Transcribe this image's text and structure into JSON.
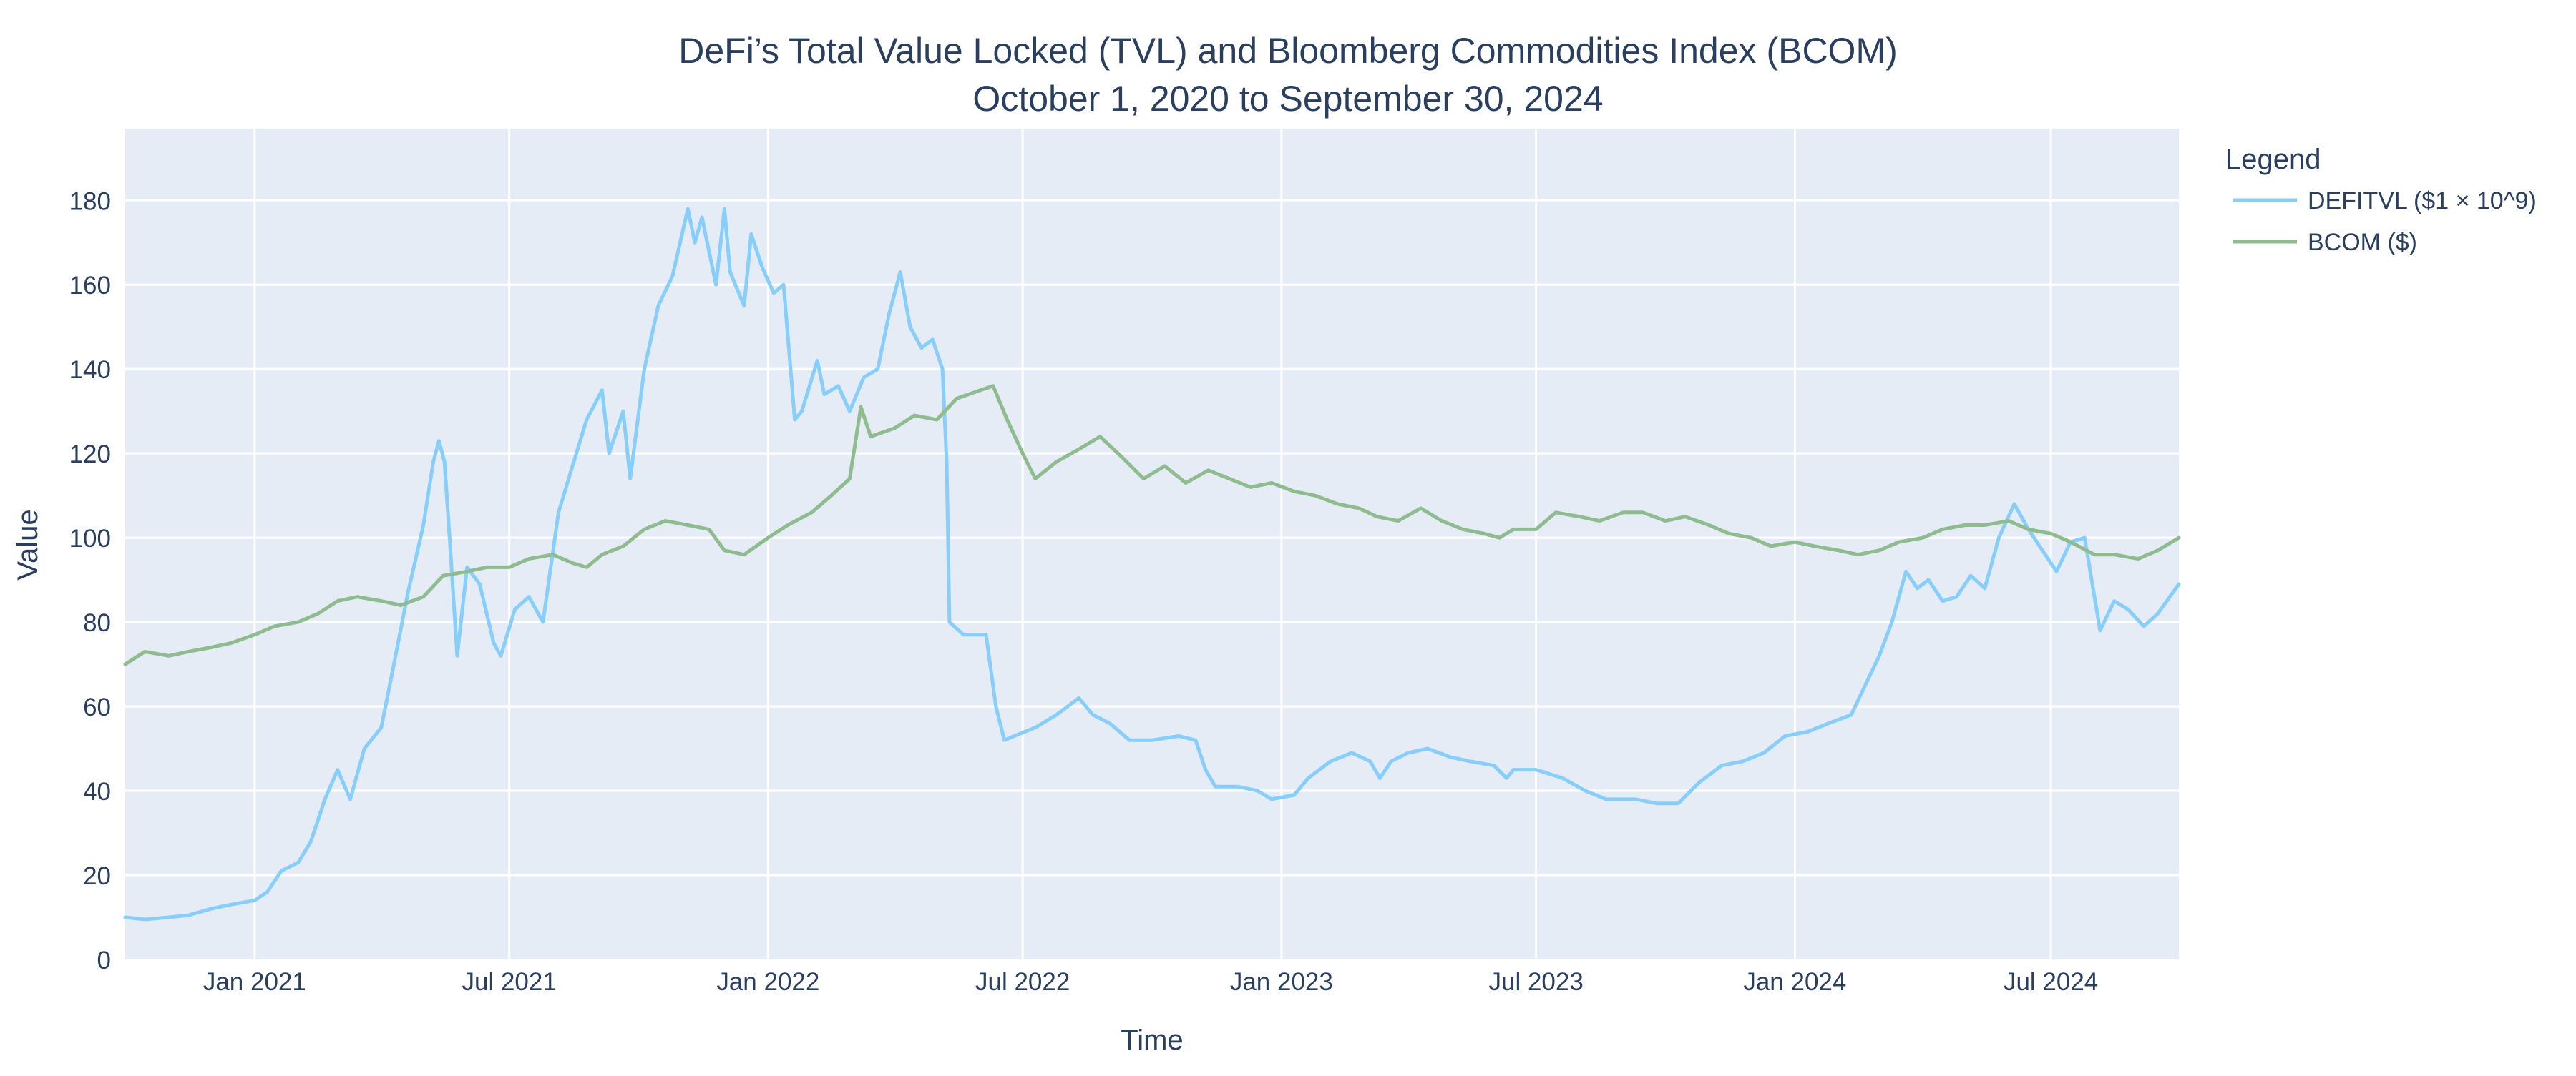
{
  "chart_data": {
    "type": "line",
    "title": "DeFi’s Total Value Locked (TVL) and Bloomberg Commodities Index (BCOM)",
    "subtitle": "October 1, 2020 to September 30, 2024",
    "xlabel": "Time",
    "ylabel": "Value",
    "xlim": [
      "2020-10-01",
      "2024-09-30"
    ],
    "ylim": [
      0,
      197
    ],
    "x_ticks": [
      {
        "date": "2021-01-01",
        "label": "Jan 2021"
      },
      {
        "date": "2021-07-01",
        "label": "Jul 2021"
      },
      {
        "date": "2022-01-01",
        "label": "Jan 2022"
      },
      {
        "date": "2022-07-01",
        "label": "Jul 2022"
      },
      {
        "date": "2023-01-01",
        "label": "Jan 2023"
      },
      {
        "date": "2023-07-01",
        "label": "Jul 2023"
      },
      {
        "date": "2024-01-01",
        "label": "Jan 2024"
      },
      {
        "date": "2024-07-01",
        "label": "Jul 2024"
      }
    ],
    "y_ticks": [
      0,
      20,
      40,
      60,
      80,
      100,
      120,
      140,
      160,
      180
    ],
    "grid": true,
    "plot_bgcolor": "#E5ECF6",
    "legend": {
      "title": "Legend",
      "position": "right"
    },
    "series": [
      {
        "name": "DEFITVL ($1 × 10^9)",
        "color": "#87CEFA",
        "points": [
          [
            "2020-10-01",
            10
          ],
          [
            "2020-10-15",
            9.5
          ],
          [
            "2020-11-01",
            10
          ],
          [
            "2020-11-15",
            10.5
          ],
          [
            "2020-12-01",
            12
          ],
          [
            "2020-12-15",
            13
          ],
          [
            "2021-01-01",
            14
          ],
          [
            "2021-01-10",
            16
          ],
          [
            "2021-01-20",
            21
          ],
          [
            "2021-02-01",
            23
          ],
          [
            "2021-02-10",
            28
          ],
          [
            "2021-02-20",
            38
          ],
          [
            "2021-03-01",
            45
          ],
          [
            "2021-03-10",
            38
          ],
          [
            "2021-03-20",
            50
          ],
          [
            "2021-04-01",
            55
          ],
          [
            "2021-04-10",
            70
          ],
          [
            "2021-04-20",
            87
          ],
          [
            "2021-05-01",
            103
          ],
          [
            "2021-05-08",
            118
          ],
          [
            "2021-05-12",
            123
          ],
          [
            "2021-05-16",
            118
          ],
          [
            "2021-05-20",
            98
          ],
          [
            "2021-05-25",
            72
          ],
          [
            "2021-06-01",
            93
          ],
          [
            "2021-06-10",
            89
          ],
          [
            "2021-06-20",
            75
          ],
          [
            "2021-06-25",
            72
          ],
          [
            "2021-07-05",
            83
          ],
          [
            "2021-07-15",
            86
          ],
          [
            "2021-07-25",
            80
          ],
          [
            "2021-08-05",
            106
          ],
          [
            "2021-08-15",
            117
          ],
          [
            "2021-08-25",
            128
          ],
          [
            "2021-09-05",
            135
          ],
          [
            "2021-09-10",
            120
          ],
          [
            "2021-09-20",
            130
          ],
          [
            "2021-09-25",
            114
          ],
          [
            "2021-10-05",
            140
          ],
          [
            "2021-10-15",
            155
          ],
          [
            "2021-10-25",
            162
          ],
          [
            "2021-11-05",
            178
          ],
          [
            "2021-11-10",
            170
          ],
          [
            "2021-11-15",
            176
          ],
          [
            "2021-11-25",
            160
          ],
          [
            "2021-12-01",
            178
          ],
          [
            "2021-12-05",
            163
          ],
          [
            "2021-12-15",
            155
          ],
          [
            "2021-12-20",
            172
          ],
          [
            "2021-12-28",
            164
          ],
          [
            "2022-01-05",
            158
          ],
          [
            "2022-01-12",
            160
          ],
          [
            "2022-01-20",
            128
          ],
          [
            "2022-01-25",
            130
          ],
          [
            "2022-02-05",
            142
          ],
          [
            "2022-02-10",
            134
          ],
          [
            "2022-02-20",
            136
          ],
          [
            "2022-02-28",
            130
          ],
          [
            "2022-03-10",
            138
          ],
          [
            "2022-03-20",
            140
          ],
          [
            "2022-03-28",
            153
          ],
          [
            "2022-04-05",
            163
          ],
          [
            "2022-04-12",
            150
          ],
          [
            "2022-04-20",
            145
          ],
          [
            "2022-04-28",
            147
          ],
          [
            "2022-05-05",
            140
          ],
          [
            "2022-05-08",
            118
          ],
          [
            "2022-05-10",
            80
          ],
          [
            "2022-05-20",
            77
          ],
          [
            "2022-06-05",
            77
          ],
          [
            "2022-06-12",
            60
          ],
          [
            "2022-06-18",
            52
          ],
          [
            "2022-06-25",
            53
          ],
          [
            "2022-07-10",
            55
          ],
          [
            "2022-07-25",
            58
          ],
          [
            "2022-08-10",
            62
          ],
          [
            "2022-08-20",
            58
          ],
          [
            "2022-09-01",
            56
          ],
          [
            "2022-09-15",
            52
          ],
          [
            "2022-10-01",
            52
          ],
          [
            "2022-10-20",
            53
          ],
          [
            "2022-11-01",
            52
          ],
          [
            "2022-11-08",
            45
          ],
          [
            "2022-11-15",
            41
          ],
          [
            "2022-12-01",
            41
          ],
          [
            "2022-12-15",
            40
          ],
          [
            "2022-12-25",
            38
          ],
          [
            "2023-01-10",
            39
          ],
          [
            "2023-01-20",
            43
          ],
          [
            "2023-02-05",
            47
          ],
          [
            "2023-02-20",
            49
          ],
          [
            "2023-03-05",
            47
          ],
          [
            "2023-03-12",
            43
          ],
          [
            "2023-03-20",
            47
          ],
          [
            "2023-04-01",
            49
          ],
          [
            "2023-04-15",
            50
          ],
          [
            "2023-05-01",
            48
          ],
          [
            "2023-05-15",
            47
          ],
          [
            "2023-06-01",
            46
          ],
          [
            "2023-06-10",
            43
          ],
          [
            "2023-06-15",
            45
          ],
          [
            "2023-07-01",
            45
          ],
          [
            "2023-07-20",
            43
          ],
          [
            "2023-08-05",
            40
          ],
          [
            "2023-08-20",
            38
          ],
          [
            "2023-09-10",
            38
          ],
          [
            "2023-09-25",
            37
          ],
          [
            "2023-10-10",
            37
          ],
          [
            "2023-10-25",
            42
          ],
          [
            "2023-11-10",
            46
          ],
          [
            "2023-11-25",
            47
          ],
          [
            "2023-12-10",
            49
          ],
          [
            "2023-12-25",
            53
          ],
          [
            "2024-01-10",
            54
          ],
          [
            "2024-01-25",
            56
          ],
          [
            "2024-02-10",
            58
          ],
          [
            "2024-02-20",
            65
          ],
          [
            "2024-03-01",
            72
          ],
          [
            "2024-03-10",
            80
          ],
          [
            "2024-03-20",
            92
          ],
          [
            "2024-03-28",
            88
          ],
          [
            "2024-04-05",
            90
          ],
          [
            "2024-04-15",
            85
          ],
          [
            "2024-04-25",
            86
          ],
          [
            "2024-05-05",
            91
          ],
          [
            "2024-05-15",
            88
          ],
          [
            "2024-05-25",
            100
          ],
          [
            "2024-06-05",
            108
          ],
          [
            "2024-06-15",
            102
          ],
          [
            "2024-06-25",
            97
          ],
          [
            "2024-07-05",
            92
          ],
          [
            "2024-07-15",
            99
          ],
          [
            "2024-07-25",
            100
          ],
          [
            "2024-08-05",
            78
          ],
          [
            "2024-08-15",
            85
          ],
          [
            "2024-08-25",
            83
          ],
          [
            "2024-09-05",
            79
          ],
          [
            "2024-09-15",
            82
          ],
          [
            "2024-09-30",
            89
          ]
        ]
      },
      {
        "name": "BCOM ($)",
        "color": "#8FBC8F",
        "points": [
          [
            "2020-10-01",
            70
          ],
          [
            "2020-10-15",
            73
          ],
          [
            "2020-11-01",
            72
          ],
          [
            "2020-11-15",
            73
          ],
          [
            "2020-12-01",
            74
          ],
          [
            "2020-12-15",
            75
          ],
          [
            "2021-01-01",
            77
          ],
          [
            "2021-01-15",
            79
          ],
          [
            "2021-02-01",
            80
          ],
          [
            "2021-02-15",
            82
          ],
          [
            "2021-03-01",
            85
          ],
          [
            "2021-03-15",
            86
          ],
          [
            "2021-04-01",
            85
          ],
          [
            "2021-04-15",
            84
          ],
          [
            "2021-05-01",
            86
          ],
          [
            "2021-05-15",
            91
          ],
          [
            "2021-06-01",
            92
          ],
          [
            "2021-06-15",
            93
          ],
          [
            "2021-07-01",
            93
          ],
          [
            "2021-07-15",
            95
          ],
          [
            "2021-08-01",
            96
          ],
          [
            "2021-08-15",
            94
          ],
          [
            "2021-08-25",
            93
          ],
          [
            "2021-09-05",
            96
          ],
          [
            "2021-09-20",
            98
          ],
          [
            "2021-10-05",
            102
          ],
          [
            "2021-10-20",
            104
          ],
          [
            "2021-11-05",
            103
          ],
          [
            "2021-11-20",
            102
          ],
          [
            "2021-12-01",
            97
          ],
          [
            "2021-12-15",
            96
          ],
          [
            "2022-01-01",
            100
          ],
          [
            "2022-01-15",
            103
          ],
          [
            "2022-02-01",
            106
          ],
          [
            "2022-02-15",
            110
          ],
          [
            "2022-02-28",
            114
          ],
          [
            "2022-03-08",
            131
          ],
          [
            "2022-03-15",
            124
          ],
          [
            "2022-04-01",
            126
          ],
          [
            "2022-04-15",
            129
          ],
          [
            "2022-05-01",
            128
          ],
          [
            "2022-05-15",
            133
          ],
          [
            "2022-06-01",
            135
          ],
          [
            "2022-06-10",
            136
          ],
          [
            "2022-06-20",
            128
          ],
          [
            "2022-07-01",
            120
          ],
          [
            "2022-07-10",
            114
          ],
          [
            "2022-07-25",
            118
          ],
          [
            "2022-08-10",
            121
          ],
          [
            "2022-08-25",
            124
          ],
          [
            "2022-09-10",
            119
          ],
          [
            "2022-09-25",
            114
          ],
          [
            "2022-10-10",
            117
          ],
          [
            "2022-10-25",
            113
          ],
          [
            "2022-11-10",
            116
          ],
          [
            "2022-11-25",
            114
          ],
          [
            "2022-12-10",
            112
          ],
          [
            "2022-12-25",
            113
          ],
          [
            "2023-01-10",
            111
          ],
          [
            "2023-01-25",
            110
          ],
          [
            "2023-02-10",
            108
          ],
          [
            "2023-02-25",
            107
          ],
          [
            "2023-03-10",
            105
          ],
          [
            "2023-03-25",
            104
          ],
          [
            "2023-04-10",
            107
          ],
          [
            "2023-04-25",
            104
          ],
          [
            "2023-05-10",
            102
          ],
          [
            "2023-05-25",
            101
          ],
          [
            "2023-06-05",
            100
          ],
          [
            "2023-06-15",
            102
          ],
          [
            "2023-07-01",
            102
          ],
          [
            "2023-07-15",
            106
          ],
          [
            "2023-08-01",
            105
          ],
          [
            "2023-08-15",
            104
          ],
          [
            "2023-09-01",
            106
          ],
          [
            "2023-09-15",
            106
          ],
          [
            "2023-10-01",
            104
          ],
          [
            "2023-10-15",
            105
          ],
          [
            "2023-11-01",
            103
          ],
          [
            "2023-11-15",
            101
          ],
          [
            "2023-12-01",
            100
          ],
          [
            "2023-12-15",
            98
          ],
          [
            "2024-01-01",
            99
          ],
          [
            "2024-01-15",
            98
          ],
          [
            "2024-02-01",
            97
          ],
          [
            "2024-02-15",
            96
          ],
          [
            "2024-03-01",
            97
          ],
          [
            "2024-03-15",
            99
          ],
          [
            "2024-04-01",
            100
          ],
          [
            "2024-04-15",
            102
          ],
          [
            "2024-05-01",
            103
          ],
          [
            "2024-05-15",
            103
          ],
          [
            "2024-06-01",
            104
          ],
          [
            "2024-06-15",
            102
          ],
          [
            "2024-07-01",
            101
          ],
          [
            "2024-07-15",
            99
          ],
          [
            "2024-08-01",
            96
          ],
          [
            "2024-08-15",
            96
          ],
          [
            "2024-09-01",
            95
          ],
          [
            "2024-09-15",
            97
          ],
          [
            "2024-09-30",
            100
          ]
        ]
      }
    ]
  }
}
